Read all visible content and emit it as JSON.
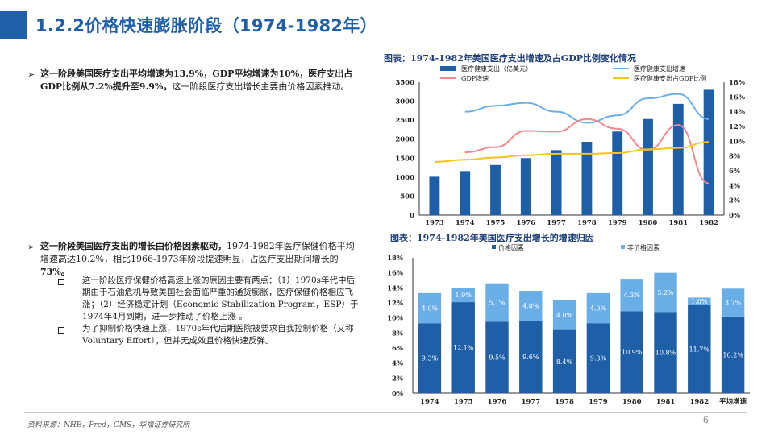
{
  "header": {
    "title": "1.2.2价格快速膨胀阶段（1974-1982年）"
  },
  "text": {
    "p1_bold": "这一阶段美国医疗支出平均增速为13.9%，GDP平均增速为10%，医疗支出占GDP比例从7.2%提升至9.9%。",
    "p1_rest": "这一阶段医疗支出增长主要由价格因素推动。",
    "p2_bold": "这一阶段美国医疗支出的增长由价格因素驱动，",
    "p2_mid": "1974-1982年医疗保健价格平均增速高达10.2%，相比1966-1973年阶段提速明显，占医疗支出期间增长的",
    "p2_bold2": "73%。",
    "sub1": "这一阶段医疗保健价格高速上涨的原因主要有两点：（1）1970s年代中后期由于石油危机导致美国社会面临严重的通货膨胀，医疗保健价格相应飞涨；（2）经济稳定计划（Economic Stabilization Program，ESP）于1974年4月到期，进一步推动了价格上涨 。",
    "sub2": "为了抑制价格快速上涨，1970s年代后期医院被要求自我控制价格（又称Voluntary Effort），但并无成效且价格快速反弹。"
  },
  "footer": {
    "source": "资料来源：NHE，Fred，CMS，华福证券研究所",
    "page": "6"
  },
  "chart_data": [
    {
      "type": "bar",
      "title": "图表：1974-1982年美国医疗支出增速及占GDP比例变化情况",
      "categories": [
        "1973",
        "1974",
        "1975",
        "1976",
        "1977",
        "1978",
        "1979",
        "1980",
        "1981",
        "1982"
      ],
      "series": [
        {
          "name": "医疗健康支出（亿美元）",
          "type": "bar",
          "axis": "left",
          "color": "#1f5fa8",
          "values": [
            1010,
            1160,
            1320,
            1500,
            1710,
            1930,
            2200,
            2530,
            2930,
            3300
          ]
        },
        {
          "name": "医疗健康支出增速",
          "type": "line",
          "axis": "right",
          "color": "#6aaee8",
          "values": [
            null,
            14.0,
            14.8,
            15.2,
            14.0,
            12.5,
            13.5,
            15.8,
            16.4,
            13.0
          ]
        },
        {
          "name": "GDP增速",
          "type": "line",
          "axis": "right",
          "color": "#f08a8e",
          "values": [
            null,
            8.5,
            9.2,
            11.4,
            11.3,
            13.0,
            11.7,
            8.8,
            12.2,
            4.3
          ]
        },
        {
          "name": "医疗健康支出占GDP比例",
          "type": "line",
          "axis": "right",
          "color": "#f5c518",
          "values": [
            7.2,
            7.5,
            7.8,
            8.1,
            8.3,
            8.3,
            8.4,
            8.9,
            9.1,
            9.9
          ]
        }
      ],
      "ylim_left": [
        0,
        3500
      ],
      "yticks_left": [
        0,
        500,
        1000,
        1500,
        2000,
        2500,
        3000,
        3500
      ],
      "ylim_right": [
        0,
        18
      ],
      "yticks_right": [
        "0%",
        "2%",
        "4%",
        "6%",
        "8%",
        "10%",
        "12%",
        "14%",
        "16%",
        "18%"
      ],
      "legend": "top"
    },
    {
      "type": "bar",
      "stacked": true,
      "title": "图表：1974-1982年美国医疗支出增长的增速归因",
      "categories": [
        "1974",
        "1975",
        "1976",
        "1977",
        "1978",
        "1979",
        "1980",
        "1981",
        "1982",
        "平均增速"
      ],
      "series": [
        {
          "name": "价格因素",
          "color": "#1f5fa8",
          "values": [
            9.3,
            12.1,
            9.5,
            9.6,
            8.4,
            9.3,
            10.9,
            10.8,
            11.7,
            10.2
          ],
          "labels": [
            "9.3%",
            "12.1%",
            "9.5%",
            "9.6%",
            "8.4%",
            "9.3%",
            "10.9%",
            "10.8%",
            "11.7%",
            "10.2%"
          ]
        },
        {
          "name": "非价格因素",
          "color": "#6aaee8",
          "values": [
            4.0,
            1.9,
            5.1,
            4.0,
            4.0,
            4.0,
            4.3,
            5.2,
            1.0,
            3.7
          ],
          "labels": [
            "4.0%",
            "1.9%",
            "5.1%",
            "4.0%",
            "4.0%",
            "4.0%",
            "4.3%",
            "5.2%",
            "1.0%",
            "3.7%"
          ]
        }
      ],
      "ylim": [
        0,
        18
      ],
      "yticks": [
        "0%",
        "2%",
        "4%",
        "6%",
        "8%",
        "10%",
        "12%",
        "14%",
        "16%",
        "18%"
      ],
      "legend": "top"
    }
  ]
}
